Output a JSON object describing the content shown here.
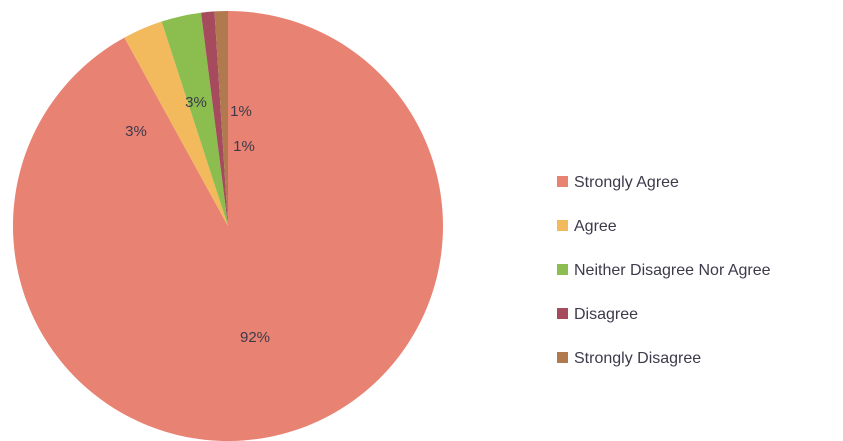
{
  "chart_data": {
    "type": "pie",
    "categories": [
      "Strongly Agree",
      "Agree",
      "Neither Disagree Nor Agree",
      "Disagree",
      "Strongly Disagree"
    ],
    "values": [
      92,
      3,
      3,
      1,
      1
    ],
    "labels": [
      "92%",
      "3%",
      "3%",
      "1%",
      "1%"
    ],
    "colors": [
      "#e88272",
      "#f2ba5c",
      "#8bbe4e",
      "#a64b5e",
      "#b07a4e"
    ],
    "legend": "right",
    "start_angle_deg": 0,
    "direction": "clockwise"
  }
}
